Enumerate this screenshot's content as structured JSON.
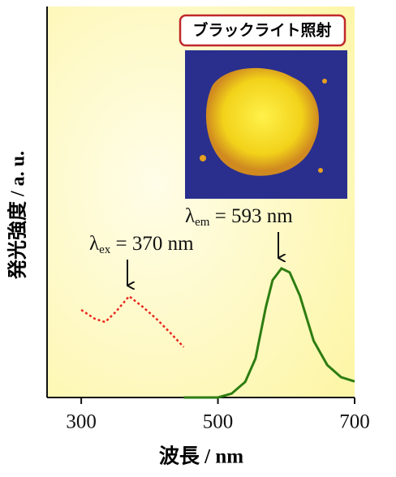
{
  "chart_data": {
    "type": "line",
    "x_label": "波長 / nm",
    "y_label": "発光強度 / a. u.",
    "xlim": [
      250,
      700
    ],
    "xticks": [
      300,
      500,
      700
    ],
    "ylim": [
      0,
      1
    ],
    "series": [
      {
        "color": "#e8281e",
        "style": "dotted",
        "x": [
          300,
          320,
          335,
          350,
          370,
          390,
          410,
          430,
          450
        ],
        "values": [
          0.224,
          0.201,
          0.193,
          0.218,
          0.259,
          0.232,
          0.201,
          0.166,
          0.129
        ]
      },
      {
        "color": "#2e7d12",
        "style": "solid",
        "x": [
          450,
          500,
          520,
          540,
          555,
          570,
          580,
          593,
          605,
          620,
          640,
          660,
          680,
          700
        ],
        "values": [
          0.0,
          0.0,
          0.01,
          0.04,
          0.1,
          0.23,
          0.3,
          0.33,
          0.32,
          0.26,
          0.145,
          0.083,
          0.052,
          0.041
        ]
      }
    ],
    "annotations": [
      {
        "symbol": "λ",
        "sub": "ex",
        "text": " = 370 nm"
      },
      {
        "symbol": "λ",
        "sub": "em",
        "text": " = 593 nm"
      }
    ],
    "inset_label": "ブラックライト照射"
  }
}
